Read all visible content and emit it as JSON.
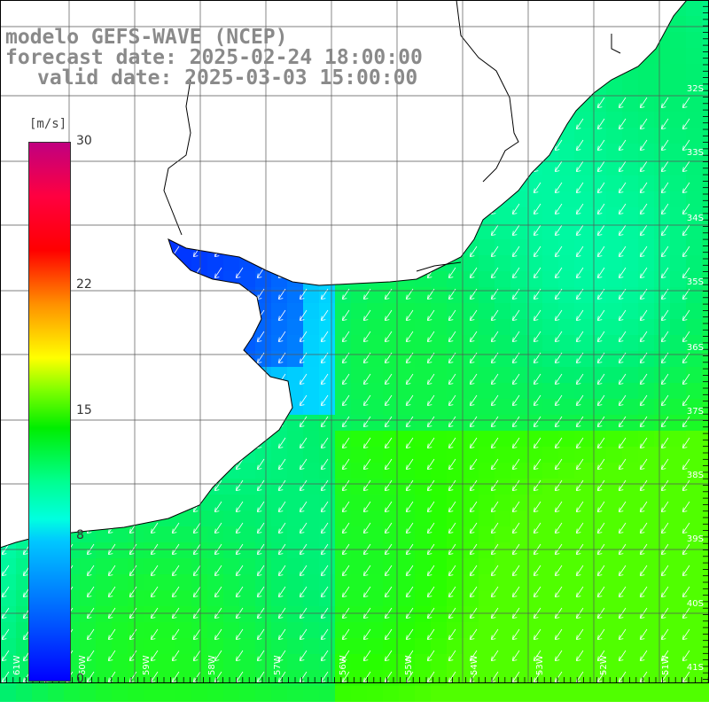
{
  "title": {
    "line1": "modelo GEFS-WAVE (NCEP)",
    "line2": "forecast date: 2025-02-24 18:00:00",
    "line3": "valid date: 2025-03-03 15:00:00"
  },
  "legend": {
    "unit": "[m/s]",
    "ticks": [
      {
        "label": "30",
        "value": 30
      },
      {
        "label": "22",
        "value": 22
      },
      {
        "label": "15",
        "value": 15
      },
      {
        "label": "8",
        "value": 8
      },
      {
        "label": "0",
        "value": 0
      }
    ],
    "min": 0,
    "max": 30
  },
  "latitude_labels": [
    "32S",
    "33S",
    "34S",
    "35S",
    "36S",
    "37S",
    "38S",
    "39S",
    "40S",
    "41S"
  ],
  "longitude_labels": [
    "61W",
    "60W",
    "59W",
    "58W",
    "57W",
    "56W",
    "55W",
    "54W",
    "53W",
    "52W",
    "51W"
  ],
  "colors": {
    "land": "#ffffff",
    "coast": "#000000",
    "grid": "#555555",
    "arrow": "#ffffff",
    "title": "#8a8a8a"
  },
  "wind_field": {
    "prevailing_direction": "from northeast",
    "speed_range_ms": [
      2,
      13
    ]
  }
}
